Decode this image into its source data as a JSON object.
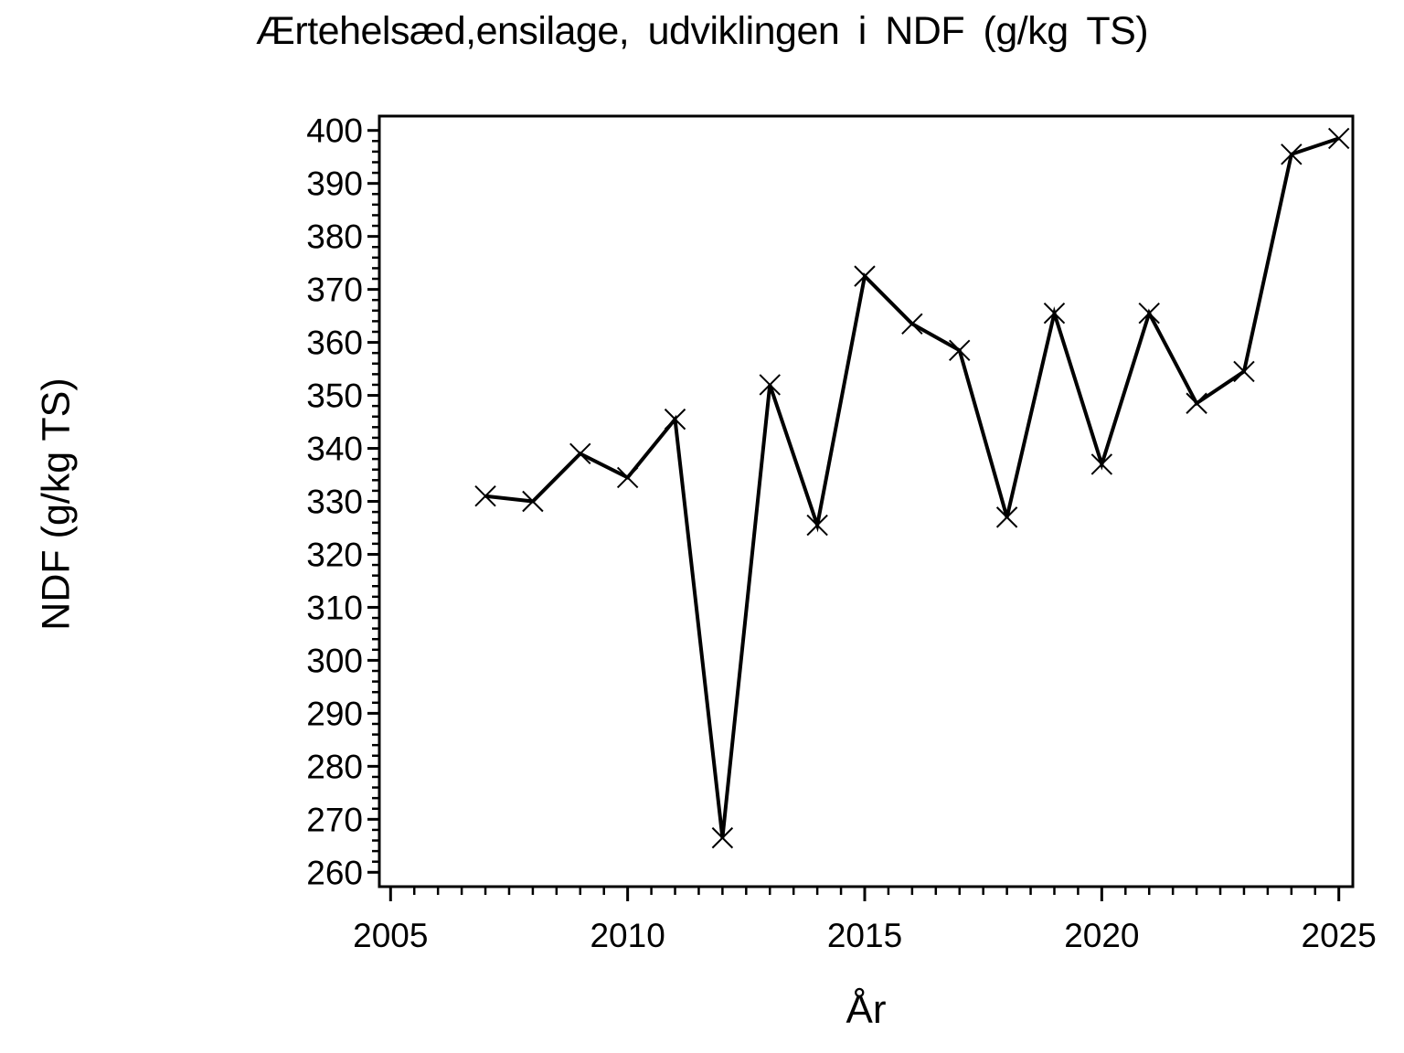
{
  "page": {
    "background": "#ffffff",
    "foreground": "#000000"
  },
  "chart_data": {
    "type": "line",
    "title": "Ærtehelsæd,ensilage, udviklingen i NDF (g/kg TS)",
    "xlabel": "År",
    "ylabel": "NDF (g/kg TS)",
    "x": [
      2007,
      2008,
      2009,
      2010,
      2011,
      2012,
      2013,
      2014,
      2015,
      2016,
      2017,
      2018,
      2019,
      2020,
      2021,
      2022,
      2023,
      2024,
      2025
    ],
    "series": [
      {
        "name": "NDF",
        "values": [
          331,
          330,
          339,
          334.5,
          345.5,
          266.5,
          352,
          325.5,
          372.5,
          363.5,
          358.5,
          327,
          365.5,
          337,
          365.5,
          348.5,
          354.5,
          395.5,
          398.5
        ]
      }
    ],
    "xlim": [
      2005,
      2025
    ],
    "ylim": [
      260,
      400
    ],
    "x_major_tick_step": 5,
    "x_minor_tick_step": 0.5,
    "y_major_tick_step": 10,
    "y_minor_tick_step": 2,
    "x_tick_labels": [
      "2005",
      "2010",
      "2015",
      "2020",
      "2025"
    ],
    "y_tick_labels": [
      "260",
      "270",
      "280",
      "290",
      "300",
      "310",
      "320",
      "330",
      "340",
      "350",
      "360",
      "370",
      "380",
      "390",
      "400"
    ],
    "marker": "x",
    "line_color": "#000000",
    "grid": false,
    "legend": null
  }
}
